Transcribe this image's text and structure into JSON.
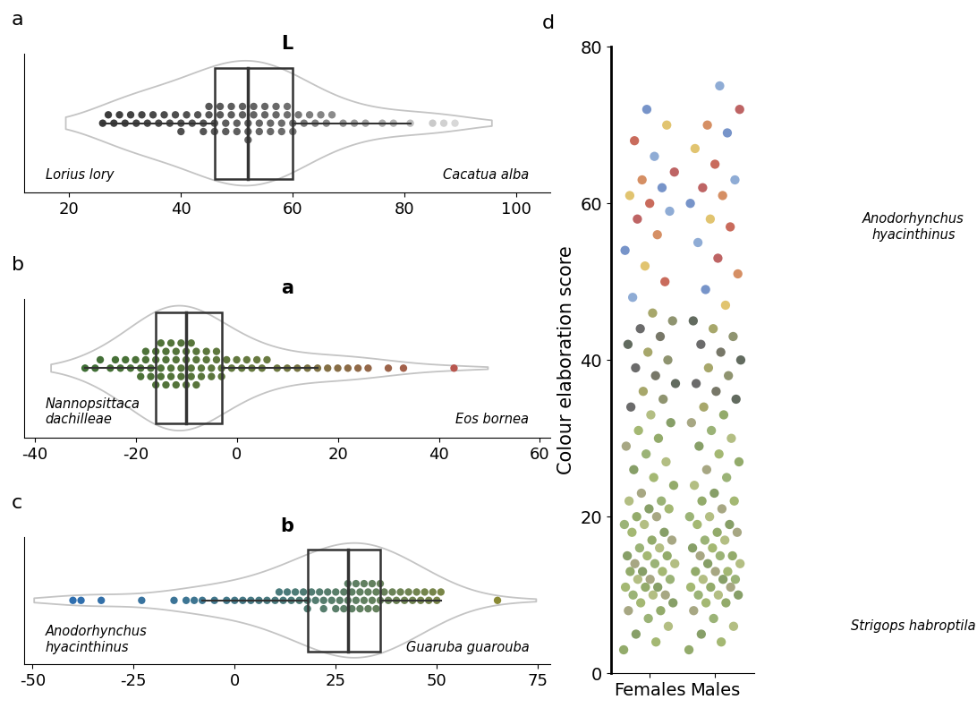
{
  "chart_data": [
    {
      "type": "violin",
      "panel_label": "a",
      "title": "L",
      "tick_labels": "x",
      "values": [
        26,
        27,
        28,
        29,
        30,
        31,
        32,
        33,
        34,
        35,
        36,
        37,
        38,
        39,
        40,
        40,
        41,
        42,
        43,
        44,
        44,
        45,
        45,
        46,
        46,
        47,
        47,
        48,
        48,
        49,
        49,
        50,
        50,
        51,
        51,
        52,
        52,
        52,
        53,
        53,
        54,
        54,
        55,
        55,
        56,
        56,
        57,
        57,
        58,
        58,
        59,
        59,
        60,
        60,
        61,
        62,
        63,
        64,
        65,
        66,
        67,
        69,
        71,
        73,
        76,
        78,
        81,
        85,
        87,
        89
      ],
      "box": {
        "whisker_low": 26,
        "q1": 46,
        "median": 52,
        "q3": 60,
        "whisker_high": 81
      },
      "xlim": [
        12,
        106
      ],
      "xticks": [
        20,
        40,
        60,
        80,
        100
      ],
      "annotations": [
        "Lorius lory",
        "Cacatua alba"
      ]
    },
    {
      "type": "violin",
      "panel_label": "b",
      "title": "a",
      "tick_labels": "x",
      "values": [
        -30,
        -28,
        -27,
        -25,
        -24,
        -23,
        -22,
        -21,
        -20,
        -19,
        -19,
        -18,
        -18,
        -17,
        -17,
        -16,
        -16,
        -16,
        -15,
        -15,
        -15,
        -14,
        -14,
        -14,
        -13,
        -13,
        -13,
        -12,
        -12,
        -12,
        -11,
        -11,
        -11,
        -10,
        -10,
        -10,
        -9,
        -9,
        -9,
        -8,
        -8,
        -8,
        -7,
        -7,
        -6,
        -6,
        -5,
        -5,
        -4,
        -4,
        -3,
        -3,
        -2,
        -1,
        0,
        1,
        2,
        3,
        4,
        5,
        6,
        8,
        10,
        12,
        14,
        16,
        18,
        20,
        22,
        24,
        26,
        30,
        33,
        43
      ],
      "box": {
        "whisker_low": -30,
        "q1": -16,
        "median": -10,
        "q3": -3,
        "whisker_high": 16
      },
      "xlim": [
        -42,
        62
      ],
      "xticks": [
        -40,
        -20,
        0,
        20,
        40,
        60
      ],
      "annotations": [
        "Nannopsittaca\ndachilleae",
        "Eos bornea"
      ]
    },
    {
      "type": "violin",
      "panel_label": "c",
      "title": "b",
      "tick_labels": "x",
      "values": [
        -40,
        -38,
        -33,
        -23,
        -15,
        -12,
        -10,
        -8,
        -5,
        -2,
        0,
        2,
        4,
        6,
        8,
        10,
        11,
        12,
        13,
        14,
        15,
        16,
        17,
        18,
        18,
        19,
        20,
        21,
        22,
        22,
        23,
        24,
        25,
        25,
        26,
        27,
        27,
        28,
        28,
        29,
        29,
        30,
        30,
        31,
        31,
        32,
        32,
        33,
        33,
        34,
        34,
        35,
        35,
        36,
        36,
        37,
        38,
        39,
        40,
        41,
        42,
        43,
        44,
        45,
        46,
        47,
        48,
        49,
        50,
        51,
        65
      ],
      "box": {
        "whisker_low": -8,
        "q1": 18,
        "median": 28,
        "q3": 36,
        "whisker_high": 51
      },
      "xlim": [
        -52,
        78
      ],
      "xticks": [
        -50,
        -25,
        0,
        25,
        50,
        75
      ],
      "annotations": [
        "Anodorhynchus\nhyacinthinus",
        "Guaruba guarouba"
      ]
    },
    {
      "type": "strip",
      "panel_label": "d",
      "ylabel": "Colour elaboration score",
      "categories": [
        "Females",
        "Males"
      ],
      "values": [
        [
          3,
          4,
          5,
          6,
          7,
          8,
          8,
          9,
          9,
          10,
          10,
          10,
          11,
          11,
          11,
          12,
          12,
          12,
          13,
          13,
          13,
          14,
          14,
          14,
          15,
          15,
          15,
          16,
          16,
          17,
          17,
          18,
          18,
          19,
          19,
          20,
          20,
          21,
          21,
          22,
          22,
          23,
          24,
          25,
          26,
          27,
          28,
          29,
          30,
          31,
          32,
          33,
          34,
          35,
          36,
          37,
          38,
          39,
          40,
          41,
          42,
          43,
          44,
          45,
          46,
          48,
          50,
          52,
          54,
          56,
          58,
          59,
          60,
          61,
          62,
          63,
          64,
          66,
          68,
          70,
          72
        ],
        [
          3,
          4,
          5,
          6,
          7,
          8,
          9,
          9,
          10,
          10,
          10,
          11,
          11,
          11,
          12,
          12,
          12,
          13,
          13,
          13,
          14,
          14,
          15,
          15,
          15,
          16,
          16,
          17,
          17,
          18,
          18,
          19,
          19,
          20,
          20,
          21,
          22,
          22,
          23,
          24,
          25,
          26,
          27,
          28,
          29,
          30,
          31,
          32,
          33,
          34,
          35,
          36,
          37,
          38,
          39,
          40,
          41,
          42,
          43,
          44,
          45,
          47,
          49,
          51,
          53,
          55,
          57,
          58,
          60,
          61,
          62,
          63,
          65,
          67,
          69,
          70,
          72,
          75
        ]
      ],
      "ylim": [
        0,
        80
      ],
      "yticks": [
        0,
        20,
        40,
        60,
        80
      ],
      "annotations": [
        "Anodorhynchus\nhyacinthinus",
        "Strigops habroptila"
      ]
    }
  ]
}
